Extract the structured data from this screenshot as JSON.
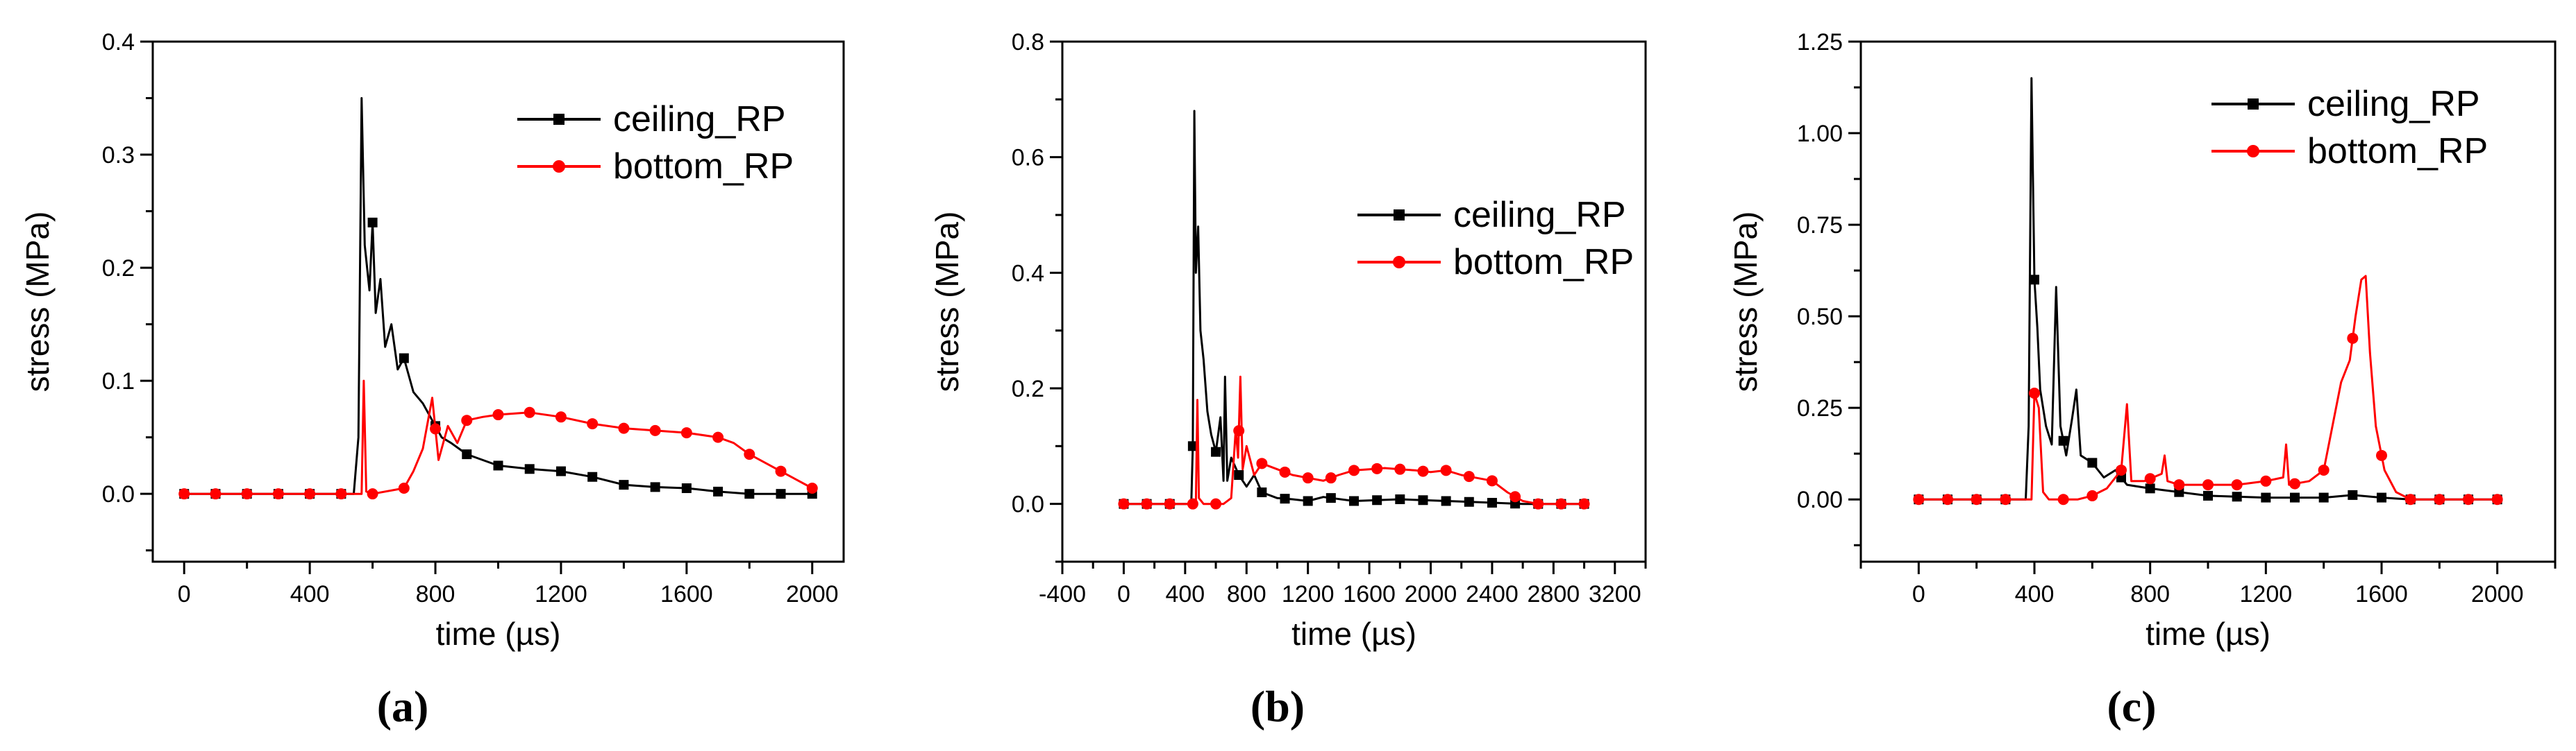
{
  "chart_data": [
    {
      "type": "line",
      "panel_label": "(a)",
      "xlabel": "time (µs)",
      "ylabel": "stress (MPa)",
      "xlim": [
        -100,
        2100
      ],
      "ylim": [
        -0.06,
        0.4
      ],
      "xticks": [
        0,
        400,
        800,
        1200,
        1600,
        2000
      ],
      "xtick_labels": [
        "0",
        "400",
        "800",
        "1200",
        "1600",
        "2000"
      ],
      "yticks": [
        0.0,
        0.1,
        0.2,
        0.3,
        0.4
      ],
      "ytick_labels": [
        "0.0",
        "0.1",
        "0.2",
        "0.3",
        "0.4"
      ],
      "legend_position": "top-right",
      "series": [
        {
          "name": "ceiling_RP",
          "color": "#000000",
          "marker": "square",
          "points": [
            [
              0,
              0
            ],
            [
              540,
              0
            ],
            [
              555,
              0.05
            ],
            [
              565,
              0.35
            ],
            [
              575,
              0.22
            ],
            [
              590,
              0.18
            ],
            [
              600,
              0.24
            ],
            [
              610,
              0.16
            ],
            [
              625,
              0.19
            ],
            [
              640,
              0.13
            ],
            [
              660,
              0.15
            ],
            [
              680,
              0.11
            ],
            [
              700,
              0.12
            ],
            [
              730,
              0.09
            ],
            [
              760,
              0.08
            ],
            [
              790,
              0.065
            ],
            [
              820,
              0.05
            ],
            [
              850,
              0.045
            ],
            [
              900,
              0.035
            ],
            [
              1000,
              0.025
            ],
            [
              1100,
              0.022
            ],
            [
              1200,
              0.02
            ],
            [
              1300,
              0.015
            ],
            [
              1400,
              0.008
            ],
            [
              1500,
              0.006
            ],
            [
              1600,
              0.005
            ],
            [
              1700,
              0.002
            ],
            [
              1800,
              0
            ],
            [
              2000,
              0
            ]
          ],
          "markers_x": [
            0,
            100,
            200,
            300,
            400,
            500,
            600,
            700,
            800,
            900,
            1000,
            1100,
            1200,
            1300,
            1400,
            1500,
            1600,
            1700,
            1800,
            1900,
            2000
          ]
        },
        {
          "name": "bottom_RP",
          "color": "#ff0000",
          "marker": "circle",
          "points": [
            [
              0,
              0
            ],
            [
              565,
              0
            ],
            [
              572,
              0.1
            ],
            [
              580,
              0.002
            ],
            [
              600,
              0
            ],
            [
              700,
              0.005
            ],
            [
              730,
              0.02
            ],
            [
              760,
              0.04
            ],
            [
              790,
              0.085
            ],
            [
              810,
              0.03
            ],
            [
              840,
              0.06
            ],
            [
              870,
              0.045
            ],
            [
              900,
              0.065
            ],
            [
              950,
              0.068
            ],
            [
              1000,
              0.07
            ],
            [
              1100,
              0.072
            ],
            [
              1200,
              0.068
            ],
            [
              1300,
              0.062
            ],
            [
              1400,
              0.058
            ],
            [
              1500,
              0.056
            ],
            [
              1600,
              0.054
            ],
            [
              1700,
              0.05
            ],
            [
              1750,
              0.045
            ],
            [
              1800,
              0.035
            ],
            [
              1900,
              0.02
            ],
            [
              2000,
              0.005
            ]
          ],
          "markers_x": [
            0,
            100,
            200,
            300,
            400,
            500,
            600,
            700,
            800,
            900,
            1000,
            1100,
            1200,
            1300,
            1400,
            1500,
            1600,
            1700,
            1800,
            1900,
            2000
          ]
        }
      ]
    },
    {
      "type": "line",
      "panel_label": "(b)",
      "xlabel": "time (µs)",
      "ylabel": "stress (MPa)",
      "xlim": [
        -400,
        3400
      ],
      "ylim": [
        -0.1,
        0.8
      ],
      "xticks": [
        -400,
        0,
        400,
        800,
        1200,
        1600,
        2000,
        2400,
        2800,
        3200
      ],
      "xtick_labels": [
        "-400",
        "0",
        "400",
        "800",
        "1200",
        "1600",
        "2000",
        "2400",
        "2800",
        "3200"
      ],
      "yticks": [
        0.0,
        0.2,
        0.4,
        0.6,
        0.8
      ],
      "ytick_labels": [
        "0.0",
        "0.2",
        "0.4",
        "0.6",
        "0.8"
      ],
      "legend_position": "center-right",
      "series": [
        {
          "name": "ceiling_RP",
          "color": "#000000",
          "marker": "square",
          "points": [
            [
              0,
              0
            ],
            [
              440,
              0
            ],
            [
              450,
              0.1
            ],
            [
              460,
              0.68
            ],
            [
              470,
              0.4
            ],
            [
              485,
              0.48
            ],
            [
              500,
              0.3
            ],
            [
              520,
              0.25
            ],
            [
              545,
              0.16
            ],
            [
              570,
              0.12
            ],
            [
              600,
              0.09
            ],
            [
              630,
              0.15
            ],
            [
              650,
              0.04
            ],
            [
              660,
              0.22
            ],
            [
              675,
              0.04
            ],
            [
              700,
              0.08
            ],
            [
              750,
              0.05
            ],
            [
              800,
              0.03
            ],
            [
              850,
              0.05
            ],
            [
              900,
              0.02
            ],
            [
              1000,
              0.01
            ],
            [
              1100,
              0.008
            ],
            [
              1200,
              0.005
            ],
            [
              1300,
              0.012
            ],
            [
              1500,
              0.005
            ],
            [
              1800,
              0.008
            ],
            [
              2200,
              0.004
            ],
            [
              2600,
              0
            ],
            [
              3000,
              0
            ]
          ],
          "markers_x": [
            0,
            150,
            300,
            450,
            600,
            750,
            900,
            1050,
            1200,
            1350,
            1500,
            1650,
            1800,
            1950,
            2100,
            2250,
            2400,
            2550,
            2700,
            2850,
            3000
          ]
        },
        {
          "name": "bottom_RP",
          "color": "#ff0000",
          "marker": "circle",
          "points": [
            [
              0,
              0
            ],
            [
              470,
              0
            ],
            [
              480,
              0.18
            ],
            [
              490,
              0.01
            ],
            [
              520,
              0
            ],
            [
              650,
              0
            ],
            [
              700,
              0.01
            ],
            [
              730,
              0.13
            ],
            [
              745,
              0.08
            ],
            [
              760,
              0.22
            ],
            [
              775,
              0.06
            ],
            [
              800,
              0.1
            ],
            [
              850,
              0.05
            ],
            [
              900,
              0.07
            ],
            [
              1000,
              0.06
            ],
            [
              1100,
              0.05
            ],
            [
              1200,
              0.045
            ],
            [
              1300,
              0.04
            ],
            [
              1400,
              0.05
            ],
            [
              1500,
              0.058
            ],
            [
              1600,
              0.06
            ],
            [
              1700,
              0.062
            ],
            [
              1800,
              0.06
            ],
            [
              1900,
              0.058
            ],
            [
              2000,
              0.055
            ],
            [
              2100,
              0.058
            ],
            [
              2200,
              0.05
            ],
            [
              2300,
              0.045
            ],
            [
              2400,
              0.04
            ],
            [
              2500,
              0.02
            ],
            [
              2600,
              0.005
            ],
            [
              2700,
              0
            ],
            [
              3000,
              0
            ]
          ],
          "markers_x": [
            0,
            150,
            300,
            450,
            600,
            750,
            900,
            1050,
            1200,
            1350,
            1500,
            1650,
            1800,
            1950,
            2100,
            2250,
            2400,
            2550,
            2700,
            2850,
            3000
          ]
        }
      ]
    },
    {
      "type": "line",
      "panel_label": "(c)",
      "xlabel": "time (µs)",
      "ylabel": "stress (MPa)",
      "xlim": [
        -200,
        2200
      ],
      "ylim": [
        -0.17,
        1.25
      ],
      "xticks": [
        0,
        400,
        800,
        1200,
        1600,
        2000
      ],
      "xtick_labels": [
        "0",
        "400",
        "800",
        "1200",
        "1600",
        "2000"
      ],
      "yticks": [
        0.0,
        0.25,
        0.5,
        0.75,
        1.0,
        1.25
      ],
      "ytick_labels": [
        "0.00",
        "0.25",
        "0.50",
        "0.75",
        "1.00",
        "1.25"
      ],
      "legend_position": "top-right",
      "series": [
        {
          "name": "ceiling_RP",
          "color": "#000000",
          "marker": "square",
          "points": [
            [
              0,
              0
            ],
            [
              370,
              0
            ],
            [
              380,
              0.2
            ],
            [
              390,
              1.15
            ],
            [
              400,
              0.6
            ],
            [
              410,
              0.47
            ],
            [
              420,
              0.3
            ],
            [
              440,
              0.2
            ],
            [
              460,
              0.15
            ],
            [
              475,
              0.58
            ],
            [
              490,
              0.2
            ],
            [
              510,
              0.12
            ],
            [
              530,
              0.22
            ],
            [
              545,
              0.3
            ],
            [
              560,
              0.12
            ],
            [
              600,
              0.1
            ],
            [
              640,
              0.06
            ],
            [
              680,
              0.08
            ],
            [
              720,
              0.04
            ],
            [
              800,
              0.03
            ],
            [
              900,
              0.02
            ],
            [
              1000,
              0.01
            ],
            [
              1200,
              0.005
            ],
            [
              1400,
              0.005
            ],
            [
              1500,
              0.012
            ],
            [
              1600,
              0.005
            ],
            [
              1700,
              0
            ],
            [
              2000,
              0
            ]
          ],
          "markers_x": [
            0,
            100,
            200,
            300,
            400,
            500,
            600,
            700,
            800,
            900,
            1000,
            1100,
            1200,
            1300,
            1400,
            1500,
            1600,
            1700,
            1800,
            1900,
            2000
          ]
        },
        {
          "name": "bottom_RP",
          "color": "#ff0000",
          "marker": "circle",
          "points": [
            [
              0,
              0
            ],
            [
              390,
              0
            ],
            [
              400,
              0.29
            ],
            [
              415,
              0.25
            ],
            [
              430,
              0.02
            ],
            [
              450,
              0
            ],
            [
              550,
              0
            ],
            [
              600,
              0.01
            ],
            [
              650,
              0.03
            ],
            [
              700,
              0.08
            ],
            [
              720,
              0.26
            ],
            [
              735,
              0.05
            ],
            [
              780,
              0.05
            ],
            [
              840,
              0.07
            ],
            [
              850,
              0.12
            ],
            [
              860,
              0.05
            ],
            [
              900,
              0.04
            ],
            [
              1000,
              0.04
            ],
            [
              1100,
              0.04
            ],
            [
              1200,
              0.05
            ],
            [
              1260,
              0.06
            ],
            [
              1270,
              0.15
            ],
            [
              1280,
              0.04
            ],
            [
              1350,
              0.05
            ],
            [
              1400,
              0.08
            ],
            [
              1430,
              0.2
            ],
            [
              1460,
              0.32
            ],
            [
              1490,
              0.38
            ],
            [
              1510,
              0.5
            ],
            [
              1530,
              0.6
            ],
            [
              1545,
              0.61
            ],
            [
              1560,
              0.4
            ],
            [
              1580,
              0.2
            ],
            [
              1610,
              0.08
            ],
            [
              1650,
              0.02
            ],
            [
              1700,
              0
            ],
            [
              2000,
              0
            ]
          ],
          "markers_x": [
            0,
            100,
            200,
            300,
            400,
            500,
            600,
            700,
            800,
            900,
            1000,
            1100,
            1200,
            1300,
            1400,
            1500,
            1600,
            1700,
            1800,
            1900,
            2000
          ]
        }
      ]
    }
  ]
}
